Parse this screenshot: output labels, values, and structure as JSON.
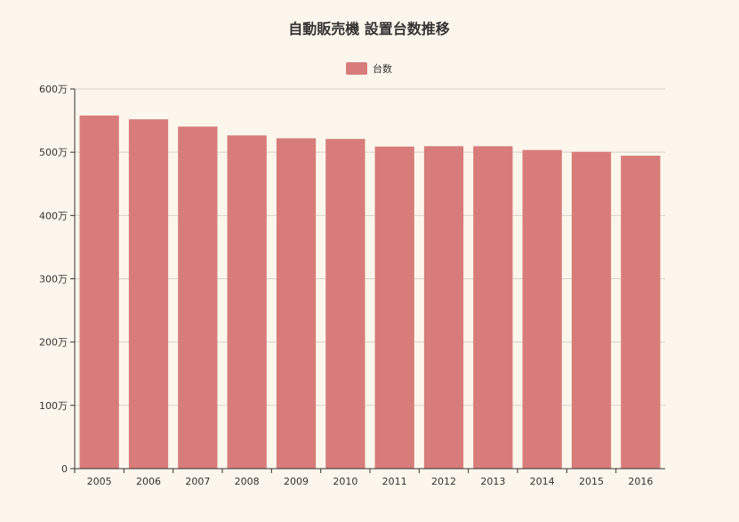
{
  "chart_data": {
    "type": "bar",
    "title": "自動販売機 設置台数推移",
    "xlabel": "",
    "ylabel": "",
    "categories": [
      "2005",
      "2006",
      "2007",
      "2008",
      "2009",
      "2010",
      "2011",
      "2012",
      "2013",
      "2014",
      "2015",
      "2016"
    ],
    "series": [
      {
        "name": "台数",
        "color": "#d77c7a",
        "values": [
          5580000,
          5520000,
          5405000,
          5265000,
          5220000,
          5210000,
          5090000,
          5095000,
          5095000,
          5035000,
          5005000,
          4945000
        ]
      }
    ],
    "ylim": [
      0,
      6000000
    ],
    "yticks": [
      0,
      1000000,
      2000000,
      3000000,
      4000000,
      5000000,
      6000000
    ],
    "ytick_labels": [
      "0",
      "100万",
      "200万",
      "300万",
      "400万",
      "500万",
      "600万"
    ],
    "grid": true,
    "legend_position": "top-center"
  }
}
